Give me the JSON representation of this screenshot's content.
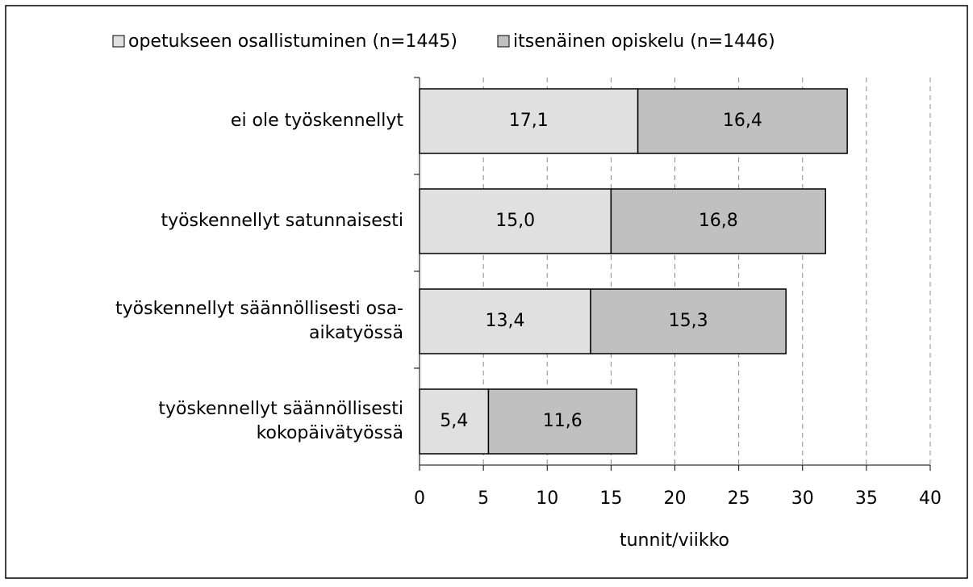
{
  "chart_data": {
    "type": "stacked-barh",
    "categories": [
      "ei ole työskennellyt",
      "työskennellyt satunnaisesti",
      "työskennellyt säännöllisesti osa-\naikatyössä",
      "työskennellyt säännöllisesti\nkokopäivätyössä"
    ],
    "series": [
      {
        "name": "opetukseen osallistuminen (n=1445)",
        "color": "#e0e0e0",
        "values": [
          17.1,
          15.0,
          13.4,
          5.4
        ],
        "value_labels": [
          "17,1",
          "15,0",
          "13,4",
          "5,4"
        ]
      },
      {
        "name": "itsenäinen opiskelu (n=1446)",
        "color": "#c0c0c0",
        "values": [
          16.4,
          16.8,
          15.3,
          11.6
        ],
        "value_labels": [
          "16,4",
          "16,8",
          "15,3",
          "11,6"
        ]
      }
    ],
    "xlabel": "tunnit/viikko",
    "xlim": [
      0,
      40
    ],
    "xticks": [
      0,
      5,
      10,
      15,
      20,
      25,
      30,
      35,
      40
    ],
    "grid": true,
    "legend": "top"
  }
}
